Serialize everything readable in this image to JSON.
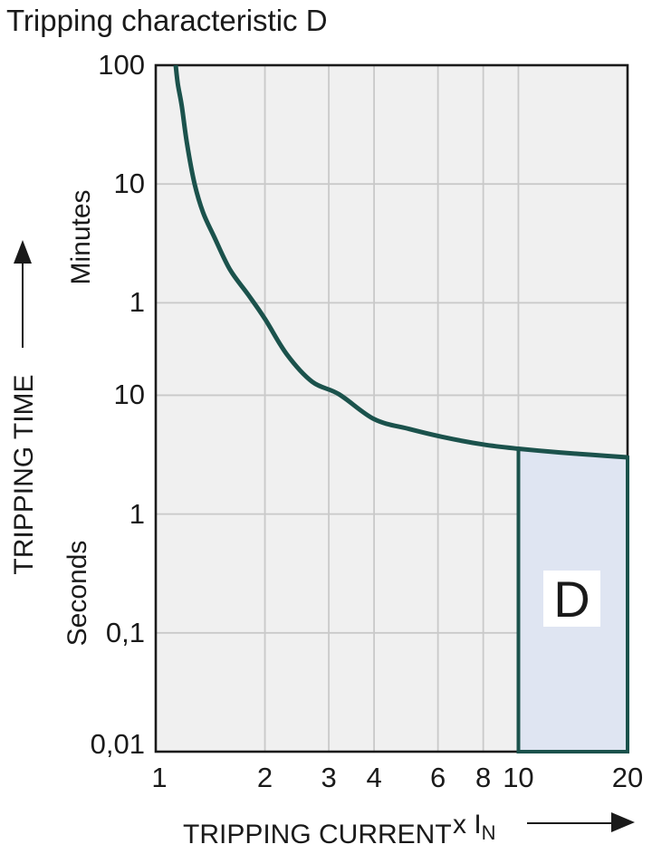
{
  "title": "Tripping characteristic D",
  "colors": {
    "text": "#1a1a1a",
    "plot_background": "#f0f0f0",
    "plot_border": "#1a1a1a",
    "gridline": "#c9c9c9",
    "curve": "#1b524c",
    "region_fill": "#dfe5f2",
    "region_border": "#1b524c",
    "region_label_background": "#ffffff"
  },
  "icons": {
    "y_axis_arrow": "up-arrow",
    "x_axis_arrow": "right-arrow"
  },
  "y_axis": {
    "label": "TRIPPING TIME",
    "units": [
      "Minutes",
      "Seconds"
    ],
    "ticks": [
      {
        "t_seconds": 6000,
        "label": "100",
        "unit": "minutes"
      },
      {
        "t_seconds": 600,
        "label": "10",
        "unit": "minutes"
      },
      {
        "t_seconds": 60,
        "label": "1",
        "unit": "minutes"
      },
      {
        "t_seconds": 10,
        "label": "10",
        "unit": "seconds"
      },
      {
        "t_seconds": 1,
        "label": "1",
        "unit": "seconds"
      },
      {
        "t_seconds": 0.1,
        "label": "0,1",
        "unit": "seconds"
      },
      {
        "t_seconds": 0.01,
        "label": "0,01",
        "unit": "seconds"
      }
    ]
  },
  "x_axis": {
    "label": "TRIPPING CURRENT",
    "multiplier_prefix": "x I",
    "multiplier_sub": "N",
    "ticks": [
      {
        "v": 1,
        "label": "1"
      },
      {
        "v": 2,
        "label": "2"
      },
      {
        "v": 3,
        "label": "3"
      },
      {
        "v": 4,
        "label": "4"
      },
      {
        "v": 6,
        "label": "6"
      },
      {
        "v": 8,
        "label": "8"
      },
      {
        "v": 10,
        "label": "10"
      },
      {
        "v": 20,
        "label": "20"
      }
    ]
  },
  "region": {
    "label": "D"
  },
  "chart_data": {
    "type": "line",
    "title": "Tripping characteristic D",
    "xlabel": "TRIPPING CURRENT (x IN)",
    "ylabel": "TRIPPING TIME",
    "x_scale": "log",
    "y_scale": "log",
    "x_range": [
      1,
      20
    ],
    "y_range_seconds": [
      0.01,
      6000
    ],
    "x_gridlines": [
      2,
      3,
      4,
      6,
      8,
      10
    ],
    "y_gridlines_seconds": [
      600,
      60,
      10,
      1,
      0.1
    ],
    "grid": true,
    "legend": "none",
    "series": [
      {
        "name": "tripping-characteristic-D",
        "points_x_multiple_vs_time_seconds": [
          [
            1.135,
            6000
          ],
          [
            1.15,
            4200
          ],
          [
            1.18,
            2700
          ],
          [
            1.22,
            1300
          ],
          [
            1.28,
            600
          ],
          [
            1.35,
            346
          ],
          [
            1.45,
            215
          ],
          [
            1.6,
            115
          ],
          [
            1.8,
            70
          ],
          [
            2.0,
            44
          ],
          [
            2.3,
            22
          ],
          [
            2.7,
            13
          ],
          [
            3.2,
            10.2
          ],
          [
            4.0,
            6.3
          ],
          [
            5.0,
            5.2
          ],
          [
            6.3,
            4.4
          ],
          [
            8.0,
            3.85
          ],
          [
            10.0,
            3.55
          ],
          [
            13.0,
            3.3
          ],
          [
            16.0,
            3.15
          ],
          [
            20.0,
            3.0
          ]
        ]
      }
    ],
    "shaded_region": {
      "label": "D",
      "x_from": 10,
      "x_to": 20,
      "t_bottom_seconds": 0.01,
      "top_boundary": "curve",
      "top_points_x_vs_t": [
        [
          10.0,
          3.55
        ],
        [
          13.0,
          3.3
        ],
        [
          16.0,
          3.15
        ],
        [
          20.0,
          3.0
        ]
      ]
    }
  }
}
